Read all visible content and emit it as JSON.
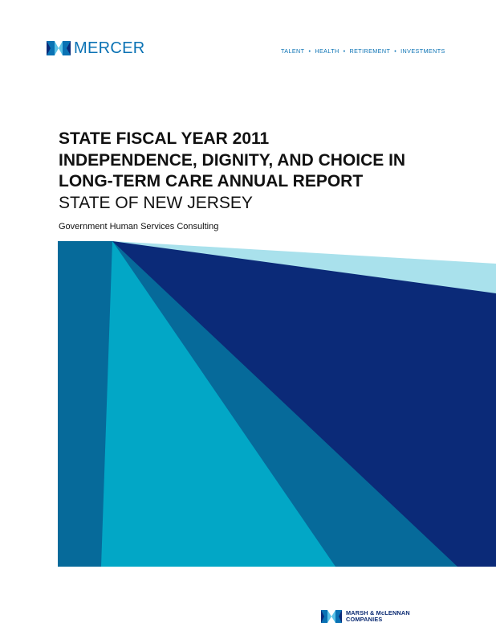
{
  "header": {
    "brand_name": "MERCER",
    "tagline": [
      "TALENT",
      "HEALTH",
      "RETIREMENT",
      "INVESTMENTS"
    ],
    "separator": "•"
  },
  "title": {
    "lines": [
      "STATE FISCAL YEAR 2011",
      "INDEPENDENCE, DIGNITY, AND CHOICE IN",
      "LONG-TERM CARE ANNUAL REPORT"
    ],
    "subtitle": "STATE OF NEW JERSEY"
  },
  "department": "Government Human Services Consulting",
  "footer": {
    "parent_company_line1": "MARSH & McLENNAN",
    "parent_company_line2": "COMPANIES"
  },
  "colors": {
    "brand_blue": "#0a72b4",
    "navy": "#0b2a78",
    "mid_blue": "#066a9a",
    "cyan": "#02a7c6",
    "light_cyan": "#a9e1ec"
  }
}
